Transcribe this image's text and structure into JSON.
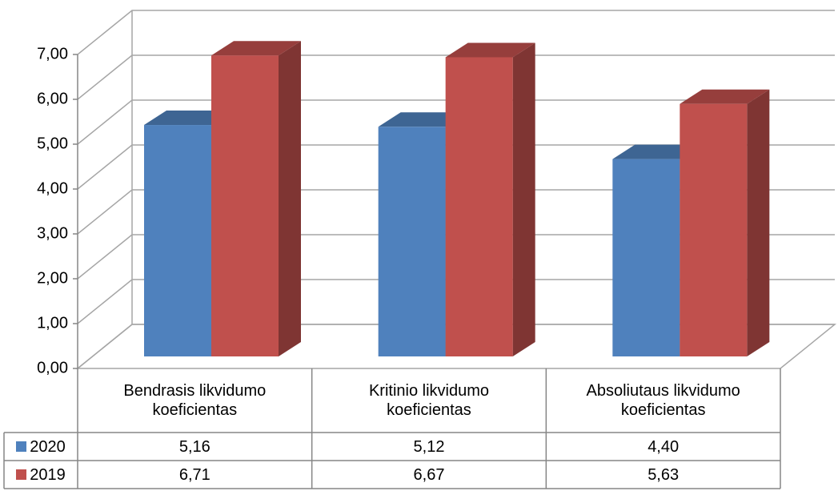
{
  "chart_data": {
    "type": "bar3d",
    "categories": [
      "Bendrasis likvidumo koeficientas",
      "Kritinio likvidumo koeficientas",
      "Absoliutaus likvidumo koeficientas"
    ],
    "series": [
      {
        "name": "2020",
        "color": "#4f81bd",
        "values": [
          5.16,
          5.12,
          4.4
        ],
        "value_labels": [
          "5,16",
          "5,12",
          "4,40"
        ]
      },
      {
        "name": "2019",
        "color": "#c0504d",
        "values": [
          6.71,
          6.67,
          5.63
        ],
        "value_labels": [
          "6,71",
          "6,67",
          "5,63"
        ]
      }
    ],
    "ylim": [
      0,
      7
    ],
    "yticks": [
      {
        "value": 0,
        "label": "0,00"
      },
      {
        "value": 1,
        "label": "1,00"
      },
      {
        "value": 2,
        "label": "2,00"
      },
      {
        "value": 3,
        "label": "3,00"
      },
      {
        "value": 4,
        "label": "4,00"
      },
      {
        "value": 5,
        "label": "5,00"
      },
      {
        "value": 6,
        "label": "6,00"
      },
      {
        "value": 7,
        "label": "7,00"
      }
    ],
    "grid": true,
    "data_table": true
  }
}
